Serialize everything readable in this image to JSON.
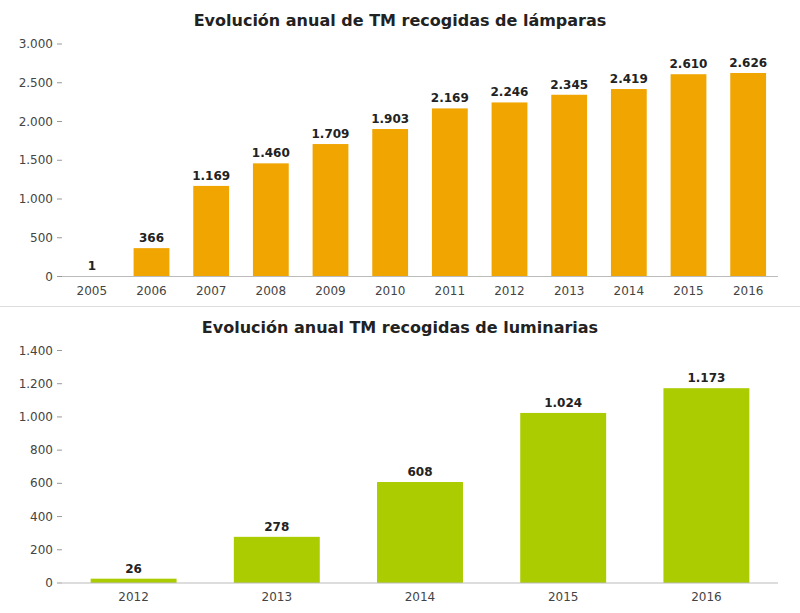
{
  "chart_data": [
    {
      "type": "bar",
      "title": "Evolución anual de TM recogidas de lámparas",
      "categories": [
        "2005",
        "2006",
        "2007",
        "2008",
        "2009",
        "2010",
        "2011",
        "2012",
        "2013",
        "2014",
        "2015",
        "2016"
      ],
      "values": [
        1,
        366,
        1169,
        1460,
        1709,
        1903,
        2169,
        2246,
        2345,
        2419,
        2610,
        2626
      ],
      "value_labels": [
        "1",
        "366",
        "1.169",
        "1.460",
        "1.709",
        "1.903",
        "2.169",
        "2.246",
        "2.345",
        "2.419",
        "2.610",
        "2.626"
      ],
      "color": "#F0A500",
      "ylim": [
        0,
        3000
      ],
      "yticks": [
        0,
        500,
        {
          "value": 1000,
          "label": "1.000"
        },
        {
          "value": 1500,
          "label": "1.500"
        },
        {
          "value": 2000,
          "label": "2.000"
        },
        {
          "value": 2500,
          "label": "2.500"
        },
        {
          "value": 3000,
          "label": "3.000"
        }
      ],
      "data_labels": true,
      "grid": false
    },
    {
      "type": "bar",
      "title": "Evolución anual TM recogidas de luminarias",
      "categories": [
        "2012",
        "2013",
        "2014",
        "2015",
        "2016"
      ],
      "values": [
        26,
        278,
        608,
        1024,
        1173
      ],
      "value_labels": [
        "26",
        "278",
        "608",
        "1.024",
        "1.173"
      ],
      "color": "#AACC00",
      "ylim": [
        0,
        1400
      ],
      "yticks": [
        0,
        200,
        400,
        600,
        800,
        {
          "value": 1000,
          "label": "1.000"
        },
        {
          "value": 1200,
          "label": "1.200"
        },
        {
          "value": 1400,
          "label": "1.400"
        }
      ],
      "data_labels": true,
      "grid": false
    }
  ]
}
